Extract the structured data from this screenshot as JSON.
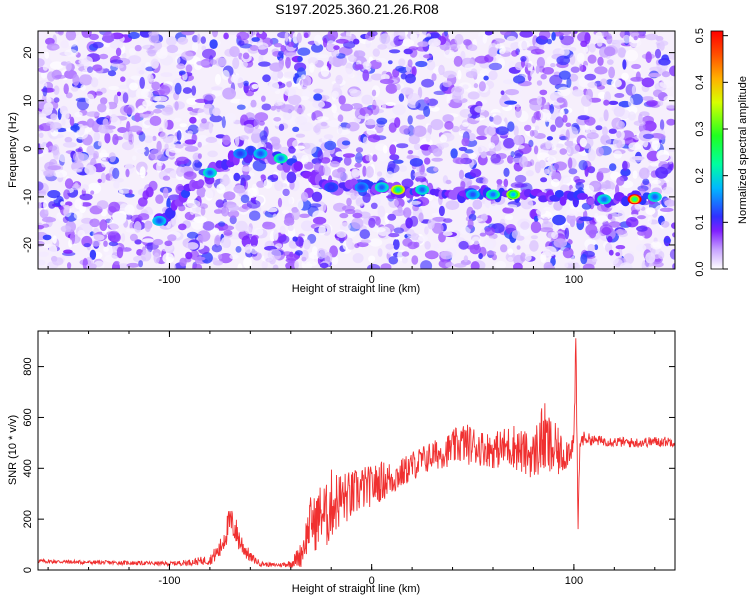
{
  "title": "S197.2025.360.21.26.R08",
  "chart_data": [
    {
      "type": "heatmap",
      "xlabel": "Height of straight line (km)",
      "ylabel": "Frequency (Hz)",
      "xlim": [
        -165,
        150
      ],
      "ylim": [
        -25,
        24.5
      ],
      "xticks": [
        -100,
        0,
        100
      ],
      "yticks": [
        -20,
        -10,
        0,
        10,
        20
      ],
      "colorbar": {
        "label": "Normalized spectral amplitude",
        "range": [
          0,
          0.51
        ],
        "ticks": [
          0,
          0.1,
          0.2,
          0.3,
          0.4,
          0.5
        ],
        "colormap": "rainbow (white-violet-blue-cyan-green-yellow-orange-red)"
      },
      "signal_track": [
        {
          "x": -105,
          "freq": -15,
          "amp": 0.18
        },
        {
          "x": -80,
          "freq": -5,
          "amp": 0.2
        },
        {
          "x": -65,
          "freq": -1,
          "amp": 0.15
        },
        {
          "x": -55,
          "freq": -1,
          "amp": 0.18
        },
        {
          "x": -45,
          "freq": -2,
          "amp": 0.22
        },
        {
          "x": -20,
          "freq": -8,
          "amp": 0.12
        },
        {
          "x": -5,
          "freq": -8,
          "amp": 0.15
        },
        {
          "x": 5,
          "freq": -8,
          "amp": 0.2
        },
        {
          "x": 13,
          "freq": -8.5,
          "amp": 0.38
        },
        {
          "x": 25,
          "freq": -8.5,
          "amp": 0.2
        },
        {
          "x": 50,
          "freq": -9.5,
          "amp": 0.18
        },
        {
          "x": 60,
          "freq": -9.5,
          "amp": 0.22
        },
        {
          "x": 70,
          "freq": -9.5,
          "amp": 0.33
        },
        {
          "x": 115,
          "freq": -10.5,
          "amp": 0.2
        },
        {
          "x": 130,
          "freq": -10.5,
          "amp": 0.51
        },
        {
          "x": 140,
          "freq": -10,
          "amp": 0.2
        }
      ]
    },
    {
      "type": "line",
      "xlabel": "Height of straight line (km)",
      "ylabel": "SNR (10 * v/v)",
      "xlim": [
        -165,
        150
      ],
      "ylim": [
        0,
        940
      ],
      "xticks": [
        -100,
        0,
        100
      ],
      "yticks": [
        0,
        200,
        400,
        600,
        800
      ],
      "line_color": "#f03030",
      "series": [
        {
          "x": [
            -165,
            -140,
            -120,
            -100,
            -90,
            -80,
            -75,
            -72,
            -70,
            -68,
            -65,
            -60,
            -55,
            -50,
            -45,
            -40,
            -35,
            -32,
            -30,
            -28,
            -25,
            -22,
            -20,
            -15,
            -10,
            -5,
            0,
            5,
            10,
            15,
            20,
            25,
            30,
            35,
            40,
            45,
            50,
            55,
            60,
            65,
            70,
            75,
            80,
            82,
            85,
            88,
            90,
            95,
            98,
            100,
            101,
            102,
            103,
            105,
            110,
            120,
            130,
            140,
            150
          ],
          "y": [
            35,
            30,
            28,
            25,
            30,
            40,
            80,
            150,
            190,
            170,
            110,
            50,
            25,
            20,
            20,
            25,
            60,
            140,
            200,
            180,
            230,
            210,
            260,
            280,
            290,
            320,
            330,
            350,
            360,
            380,
            410,
            430,
            450,
            460,
            480,
            500,
            490,
            480,
            470,
            480,
            490,
            460,
            450,
            480,
            520,
            480,
            470,
            450,
            480,
            500,
            900,
            150,
            500,
            520,
            510,
            505,
            500,
            505,
            505
          ],
          "yrange": [
            8,
            8,
            8,
            8,
            12,
            20,
            40,
            60,
            60,
            60,
            50,
            20,
            10,
            8,
            8,
            15,
            50,
            80,
            100,
            110,
            120,
            130,
            140,
            110,
            100,
            90,
            80,
            80,
            70,
            60,
            60,
            60,
            60,
            60,
            70,
            80,
            80,
            70,
            70,
            80,
            90,
            90,
            90,
            120,
            150,
            130,
            120,
            70,
            60,
            50,
            60,
            60,
            30,
            25,
            20,
            20,
            20,
            20,
            20
          ]
        }
      ]
    }
  ]
}
